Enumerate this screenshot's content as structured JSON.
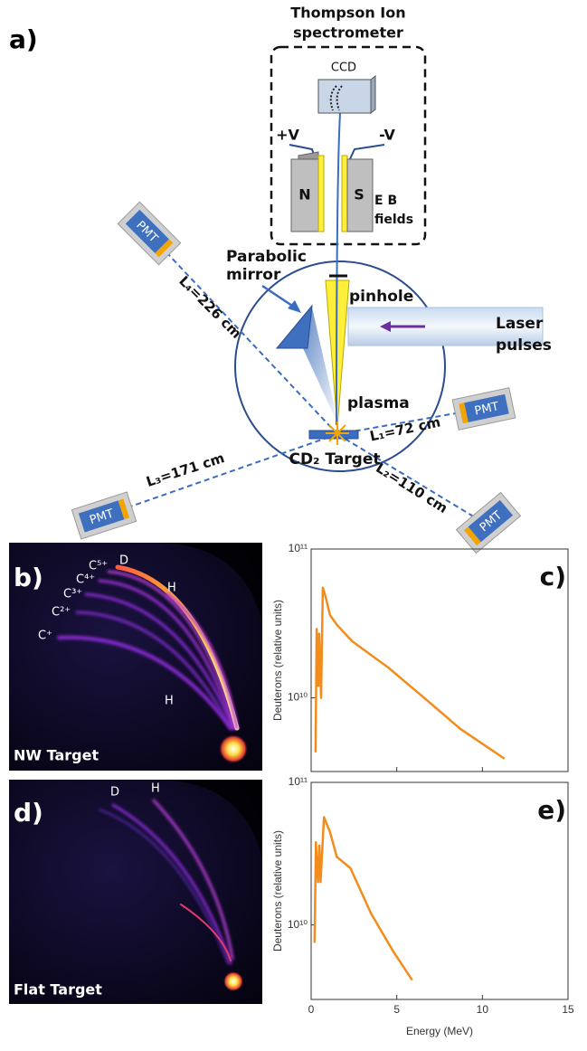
{
  "panel_a": {
    "label": "a)",
    "spectrometer_title": [
      "Thompson Ion",
      "spectrometer"
    ],
    "ccd": "CCD",
    "plus_v": "+V",
    "minus_v": "-V",
    "north": "N",
    "south": "S",
    "fields": [
      "E B",
      "fields"
    ],
    "mirror": [
      "Parabolic",
      "mirror"
    ],
    "pinhole": "pinhole",
    "laser": [
      "Laser",
      "pulses"
    ],
    "plasma": "plasma",
    "target": "CD₂ Target",
    "pmt": [
      "PMT",
      "PMT",
      "PMT",
      "PMT"
    ],
    "distances": [
      "L₄=226 cm",
      "L₁=72 cm",
      "L₂=110 cm",
      "L₃=171 cm"
    ]
  },
  "panel_b": {
    "label": "b)",
    "traces": [
      "D",
      "H",
      "C⁵⁺",
      "C⁴⁺",
      "C³⁺",
      "C²⁺",
      "C⁺",
      "H"
    ],
    "caption": "NW Target"
  },
  "panel_d": {
    "label": "d)",
    "traces": [
      "H",
      "D"
    ],
    "caption": "Flat Target"
  },
  "chart_data": [
    {
      "type": "line",
      "panel_label": "c)",
      "ylabel": "Deuterons (relative units)",
      "log_y": true,
      "color": "#f28c1c",
      "x": [
        0.26,
        0.32,
        0.42,
        0.47,
        0.58,
        0.68,
        0.84,
        1.1,
        1.5,
        2.4,
        4.5,
        6.6,
        8.7,
        11.3
      ],
      "values": [
        4300000000.0,
        29000000000.0,
        12000000000.0,
        27000000000.0,
        10000000000.0,
        55000000000.0,
        48000000000.0,
        36000000000.0,
        31000000000.0,
        24000000000.0,
        16000000000.0,
        10000000000.0,
        6200000000.0,
        3900000000.0
      ],
      "xlim": [
        0,
        15
      ],
      "xticks": [
        0,
        5,
        10,
        15
      ],
      "xtick_labels": false,
      "ylim": [
        3200000000.0,
        100000000000.0
      ],
      "yticks": [
        {
          "value": 100000000000.0,
          "label": "10¹¹"
        },
        {
          "value": 10000000000.0,
          "label": "10¹⁰"
        }
      ]
    },
    {
      "type": "line",
      "panel_label": "e)",
      "ylabel": "Deuterons (relative units)",
      "xlabel": "Energy (MeV)",
      "log_y": true,
      "color": "#f28c1c",
      "x": [
        0.2,
        0.28,
        0.4,
        0.48,
        0.55,
        0.75,
        1.1,
        1.5,
        2.3,
        3.5,
        4.8,
        5.9
      ],
      "values": [
        7500000000.0,
        38000000000.0,
        20000000000.0,
        36000000000.0,
        20000000000.0,
        57000000000.0,
        45000000000.0,
        30000000000.0,
        25000000000.0,
        12000000000.0,
        6500000000.0,
        4100000000.0
      ],
      "xlim": [
        0,
        15
      ],
      "xticks": [
        0,
        5,
        10,
        15
      ],
      "xtick_labels": true,
      "ylim": [
        3000000000.0,
        100000000000.0
      ],
      "yticks": [
        {
          "value": 100000000000.0,
          "label": "10¹¹"
        },
        {
          "value": 10000000000.0,
          "label": "10¹⁰"
        }
      ]
    }
  ]
}
